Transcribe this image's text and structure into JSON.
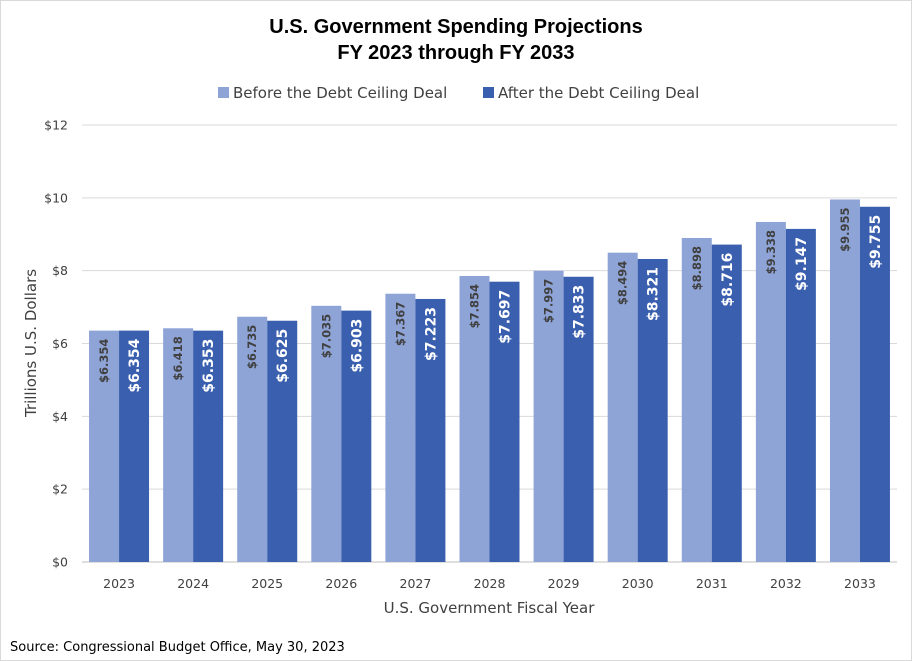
{
  "chart_data": {
    "type": "bar",
    "title_line1": "U.S. Government Spending Projections",
    "title_line2": "FY 2023 through FY 2033",
    "xlabel": "U.S. Government Fiscal Year",
    "ylabel": "Trillions U.S. Dollars",
    "ylim": [
      0,
      12
    ],
    "yticks": [
      0,
      2,
      4,
      6,
      8,
      10,
      12
    ],
    "ytick_labels": [
      "$0",
      "$2",
      "$4",
      "$6",
      "$8",
      "$10",
      "$12"
    ],
    "grid": true,
    "legend_position": "top",
    "categories": [
      "2023",
      "2024",
      "2025",
      "2026",
      "2027",
      "2028",
      "2029",
      "2030",
      "2031",
      "2032",
      "2033"
    ],
    "series": [
      {
        "name": "Before the Debt Ceiling Deal",
        "color": "#8ea3d6",
        "values": [
          6.354,
          6.418,
          6.735,
          7.035,
          7.367,
          7.854,
          7.997,
          8.494,
          8.898,
          9.338,
          9.955
        ],
        "labels": [
          "$6.354",
          "$6.418",
          "$6.735",
          "$7.035",
          "$7.367",
          "$7.854",
          "$7.997",
          "$8.494",
          "$8.898",
          "$9.338",
          "$9.955"
        ]
      },
      {
        "name": "After the Debt Ceiling Deal",
        "color": "#3a5fae",
        "values": [
          6.354,
          6.353,
          6.625,
          6.903,
          7.223,
          7.697,
          7.833,
          8.321,
          8.716,
          9.147,
          9.755
        ],
        "labels": [
          "$6.354",
          "$6.353",
          "$6.625",
          "$6.903",
          "$7.223",
          "$7.697",
          "$7.833",
          "$8.321",
          "$8.716",
          "$9.147",
          "$9.755"
        ]
      }
    ],
    "source": "Source: Congressional Budget Office, May 30, 2023"
  }
}
